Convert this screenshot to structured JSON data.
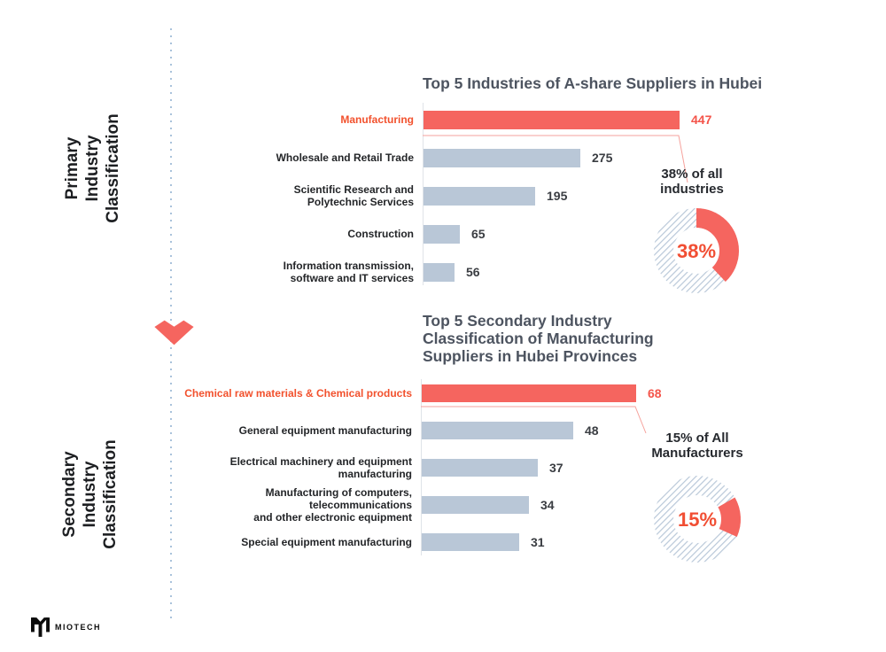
{
  "side_labels": {
    "primary": "Primary\nIndustry\nClassification",
    "secondary": "Secondary\nIndustry\nClassification"
  },
  "logo": {
    "text": "MIOTECH"
  },
  "colors": {
    "bar_highlight": "#f5655f",
    "bar_default": "#b9c7d7",
    "accent_text": "#f2512d",
    "accent_number": "#f4544a",
    "title_text": "#4d5460",
    "hatch": "#b9c8d9",
    "dotted_line": "#a9c2db",
    "callout_line": "#f6a29c"
  },
  "chart_data": [
    {
      "type": "bar",
      "orientation": "horizontal",
      "title": "Top 5 Industries of A-share Suppliers in Hubei",
      "categories": [
        "Manufacturing",
        "Wholesale and Retail Trade",
        "Scientific Research and\nPolytechnic Services",
        "Construction",
        "Information transmission,\nsoftware and IT services"
      ],
      "values": [
        447,
        275,
        195,
        65,
        56
      ],
      "highlight_index": 0,
      "donut": {
        "type": "donut",
        "percent": 38,
        "rest_percent": 62,
        "center_text": "38%",
        "label": "38% of all\nindustries"
      }
    },
    {
      "type": "bar",
      "orientation": "horizontal",
      "title": "Top 5 Secondary Industry\nClassification of Manufacturing\nSuppliers in Hubei Provinces",
      "categories": [
        "Chemical raw materials & Chemical products",
        "General equipment manufacturing",
        "Electrical machinery and equipment\nmanufacturing",
        "Manufacturing of computers, telecommunications\nand other electronic equipment",
        "Special equipment manufacturing"
      ],
      "values": [
        68,
        48,
        37,
        34,
        31
      ],
      "highlight_index": 0,
      "donut": {
        "type": "donut",
        "percent": 15,
        "rest_percent": 85,
        "center_text": "15%",
        "label": "15% of All\nManufacturers"
      }
    }
  ]
}
